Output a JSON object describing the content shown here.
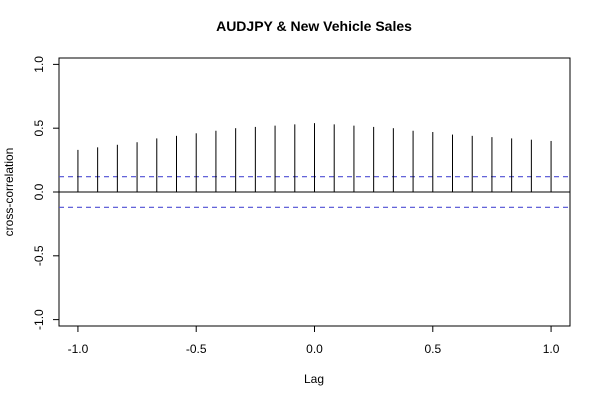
{
  "chart_data": {
    "type": "bar",
    "title": "AUDJPY & New Vehicle Sales",
    "xlabel": "Lag",
    "ylabel": "cross-correlation",
    "xlim": [
      -1.08,
      1.08
    ],
    "ylim": [
      -1.05,
      1.05
    ],
    "x_ticks": [
      -1.0,
      -0.5,
      0.0,
      0.5,
      1.0
    ],
    "x_tick_labels": [
      "-1.0",
      "-0.5",
      "0.0",
      "0.5",
      "1.0"
    ],
    "y_ticks": [
      -1.0,
      -0.5,
      0.0,
      0.5,
      1.0
    ],
    "y_tick_labels": [
      "-1.0",
      "-0.5",
      "0.0",
      "0.5",
      "1.0"
    ],
    "lags": [
      -1.0,
      -0.9167,
      -0.8333,
      -0.75,
      -0.6667,
      -0.5833,
      -0.5,
      -0.4167,
      -0.3333,
      -0.25,
      -0.1667,
      -0.0833,
      0.0,
      0.0833,
      0.1667,
      0.25,
      0.3333,
      0.4167,
      0.5,
      0.5833,
      0.6667,
      0.75,
      0.8333,
      0.9167,
      1.0
    ],
    "values": [
      0.33,
      0.35,
      0.37,
      0.39,
      0.42,
      0.44,
      0.46,
      0.48,
      0.5,
      0.51,
      0.52,
      0.53,
      0.54,
      0.53,
      0.52,
      0.51,
      0.5,
      0.48,
      0.47,
      0.45,
      0.44,
      0.43,
      0.42,
      0.41,
      0.4
    ],
    "confidence_bounds": [
      0.12,
      -0.12
    ],
    "colors": {
      "bars": "#000000",
      "bounds": "#4f4fd4",
      "zero_line": "#000000"
    },
    "grid": false,
    "legend": "none"
  }
}
